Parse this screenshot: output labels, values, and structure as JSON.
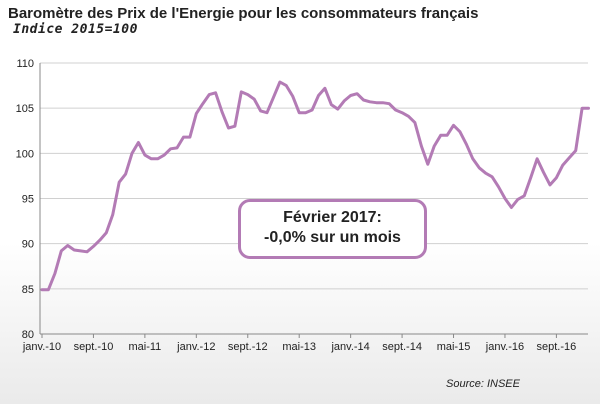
{
  "chart_data": {
    "type": "line",
    "title": "Baromètre des Prix de l'Energie pour les consommateurs français",
    "subtitle": "Indice 2015=100",
    "xlabel": "",
    "ylabel": "",
    "ylim": [
      80,
      110
    ],
    "yticks": [
      80,
      85,
      90,
      95,
      100,
      105,
      110
    ],
    "x_tick_labels": [
      "janv.-10",
      "sept.-10",
      "mai-11",
      "janv.-12",
      "sept.-12",
      "mai-13",
      "janv.-14",
      "sept.-14",
      "mai-15",
      "janv.-16",
      "sept.-16"
    ],
    "grid": true,
    "line_color": "#b37bb5",
    "series": [
      {
        "values": [
          84.9,
          84.9,
          86.7,
          89.2,
          89.8,
          89.3,
          89.2,
          89.1,
          89.7,
          90.4,
          91.2,
          93.2,
          96.8,
          97.7,
          100.0,
          101.2,
          99.8,
          99.4,
          99.4,
          99.8,
          100.5,
          100.6,
          101.8,
          101.8,
          104.4,
          105.5,
          106.5,
          106.7,
          104.6,
          102.8,
          103.0,
          106.8,
          106.5,
          106.0,
          104.7,
          104.5,
          106.2,
          107.9,
          107.5,
          106.3,
          104.5,
          104.5,
          104.8,
          106.4,
          107.2,
          105.4,
          104.9,
          105.8,
          106.4,
          106.6,
          105.9,
          105.7,
          105.6,
          105.6,
          105.5,
          104.8,
          104.5,
          104.1,
          103.4,
          100.8,
          98.8,
          100.8,
          102.0,
          102.0,
          103.1,
          102.4,
          101.0,
          99.4,
          98.4,
          97.8,
          97.4,
          96.3,
          95.0,
          94.0,
          94.9,
          95.3,
          97.3,
          99.4,
          97.9,
          96.5,
          97.3,
          98.7,
          99.5,
          100.3,
          105.0,
          105.0
        ]
      }
    ],
    "annotation": [
      "Février 2017:",
      "-0,0% sur un mois"
    ],
    "source": "Source: INSEE"
  }
}
